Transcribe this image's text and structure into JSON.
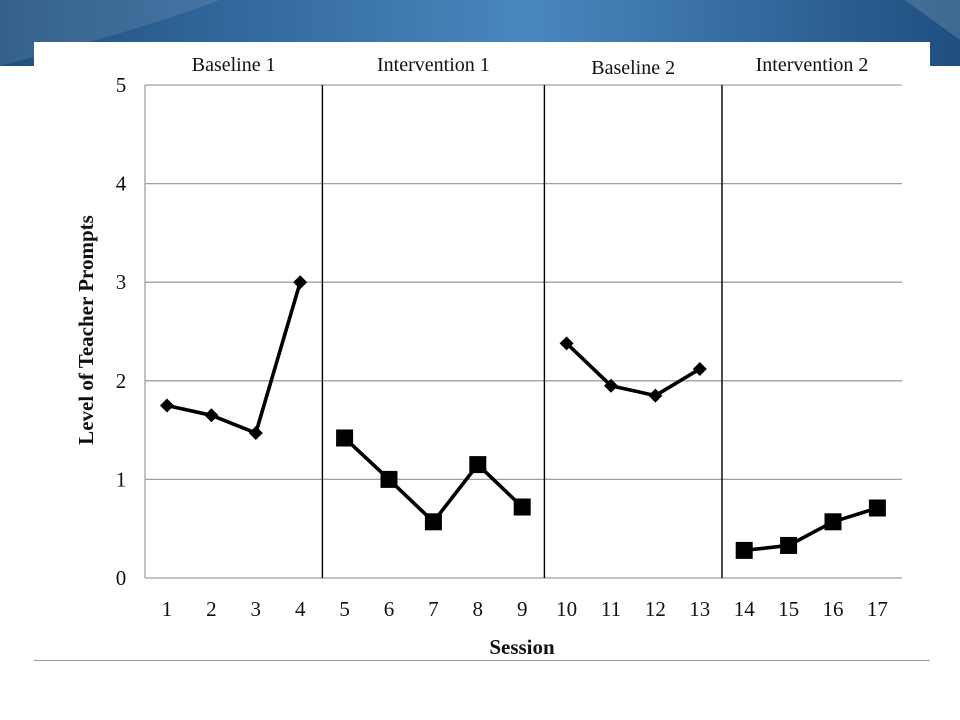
{
  "theme": {
    "banner_dark": "#1f4f7f",
    "banner_light": "#4a87bf",
    "gridline": "#a0a0a0",
    "line": "#000000",
    "phase_divider": "#000000"
  },
  "chart_data": {
    "type": "line",
    "title": "",
    "xlabel": "Session",
    "ylabel": "Level of Teacher Prompts",
    "ylim": [
      0,
      5
    ],
    "yticks": [
      0,
      1,
      2,
      3,
      4,
      5
    ],
    "xticks": [
      1,
      2,
      3,
      4,
      5,
      6,
      7,
      8,
      9,
      10,
      11,
      12,
      13,
      14,
      15,
      16,
      17
    ],
    "grid": "horizontal",
    "legend": "none",
    "phases": [
      {
        "label": "Baseline 1",
        "sessions": [
          1,
          4
        ]
      },
      {
        "label": "Intervention 1",
        "sessions": [
          5,
          9
        ]
      },
      {
        "label": "Baseline 2",
        "sessions": [
          10,
          13
        ]
      },
      {
        "label": "Intervention 2",
        "sessions": [
          14,
          17
        ]
      }
    ],
    "series": [
      {
        "phase": "Baseline 1",
        "marker": "diamond",
        "x": [
          1,
          2,
          3,
          4
        ],
        "y": [
          1.75,
          1.65,
          1.47,
          3.0
        ]
      },
      {
        "phase": "Intervention 1",
        "marker": "square",
        "x": [
          5,
          6,
          7,
          8,
          9
        ],
        "y": [
          1.42,
          1.0,
          0.57,
          1.15,
          0.72
        ]
      },
      {
        "phase": "Baseline 2",
        "marker": "diamond",
        "x": [
          10,
          11,
          12,
          13
        ],
        "y": [
          2.38,
          1.95,
          1.85,
          2.12
        ]
      },
      {
        "phase": "Intervention 2",
        "marker": "square",
        "x": [
          14,
          15,
          16,
          17
        ],
        "y": [
          0.28,
          0.33,
          0.57,
          0.71
        ]
      }
    ]
  }
}
